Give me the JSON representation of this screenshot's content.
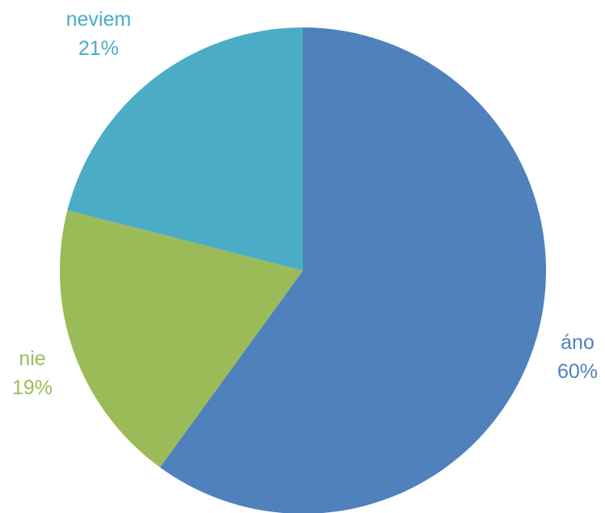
{
  "chart_data": {
    "type": "pie",
    "title": "",
    "slices": [
      {
        "label": "áno",
        "value": 60,
        "value_label": "60%",
        "color": "#4f81bd"
      },
      {
        "label": "nie",
        "value": 19,
        "value_label": "19%",
        "color": "#9bbb59"
      },
      {
        "label": "neviem",
        "value": 21,
        "value_label": "21%",
        "color": "#4bacc6"
      }
    ],
    "start_angle_deg": 0,
    "direction": "clockwise",
    "legend": "none",
    "data_labels": "category and percentage, outside"
  }
}
